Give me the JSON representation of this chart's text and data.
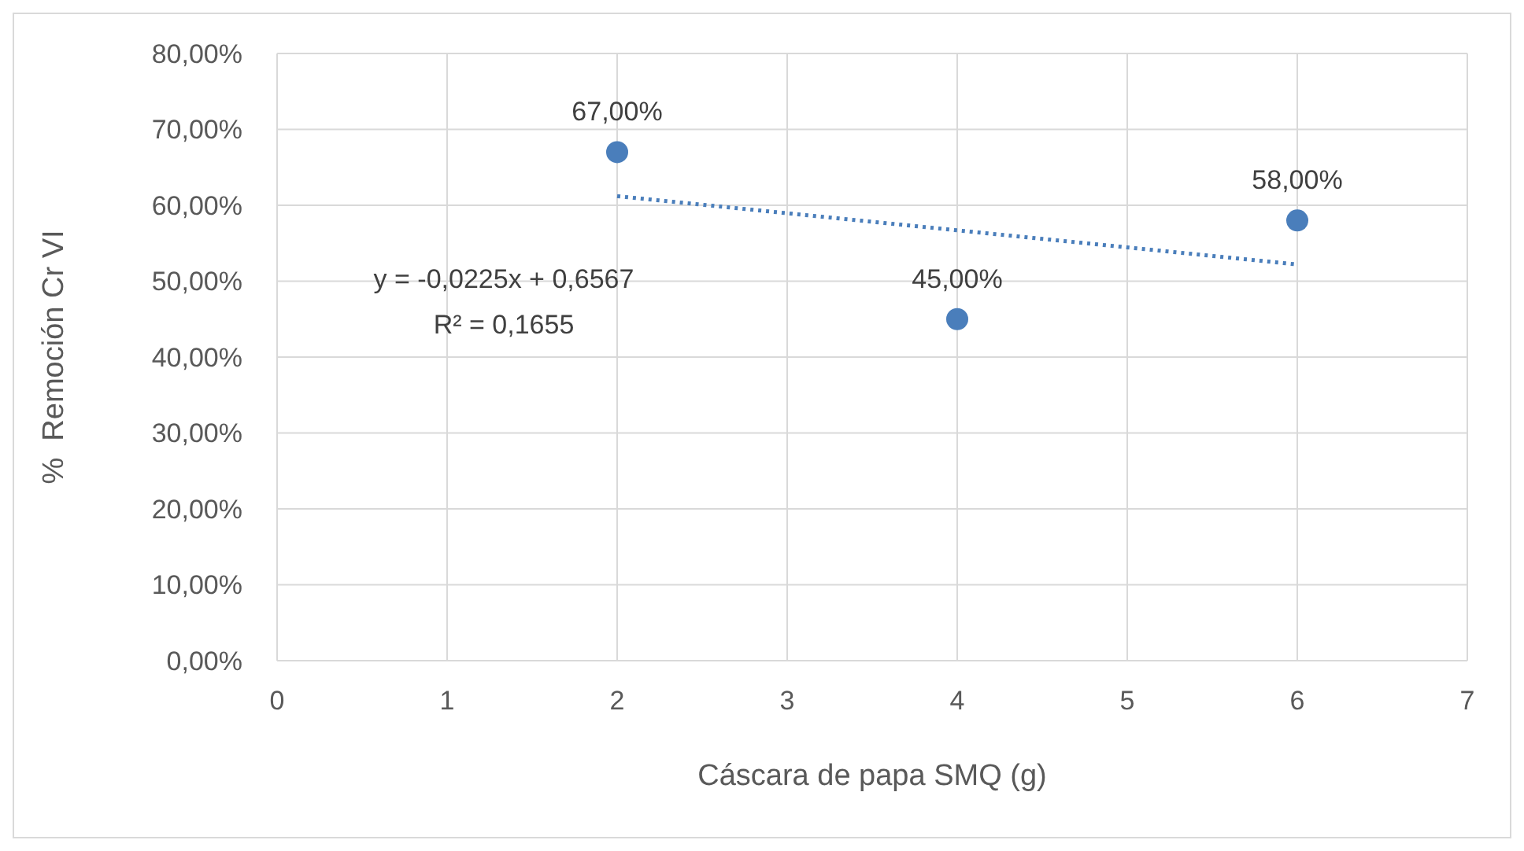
{
  "chart_data": {
    "type": "scatter",
    "xlabel": "Cáscara de papa SMQ (g)",
    "ylabel": "%  Remoción Cr VI",
    "x": [
      2,
      4,
      6
    ],
    "series": [
      {
        "color": "#4a7ebb",
        "values": [
          67,
          45,
          58
        ],
        "value_labels": [
          "67,00%",
          "45,00%",
          "58,00%"
        ]
      },
      {
        "type": "line",
        "color": "#4a7ebb",
        "x": [
          2,
          6
        ],
        "values": [
          61.2,
          52.2
        ],
        "line_style": "dotted",
        "marker": "none"
      }
    ],
    "annotations": [
      "y = -0,0225x + 0,6567",
      "R² = 0,1655"
    ],
    "xlim": [
      0,
      7
    ],
    "xticks": [
      0,
      1,
      2,
      3,
      4,
      5,
      6,
      7
    ],
    "ylim": [
      0,
      80
    ],
    "yticks": [
      {
        "value": 0,
        "label": "0,00%"
      },
      {
        "value": 10,
        "label": "10,00%"
      },
      {
        "value": 20,
        "label": "20,00%"
      },
      {
        "value": 30,
        "label": "30,00%"
      },
      {
        "value": 40,
        "label": "40,00%"
      },
      {
        "value": 50,
        "label": "50,00%"
      },
      {
        "value": 60,
        "label": "60,00%"
      },
      {
        "value": 70,
        "label": "70,00%"
      },
      {
        "value": 80,
        "label": "80,00%"
      }
    ],
    "grid": true,
    "marker": "circle"
  }
}
